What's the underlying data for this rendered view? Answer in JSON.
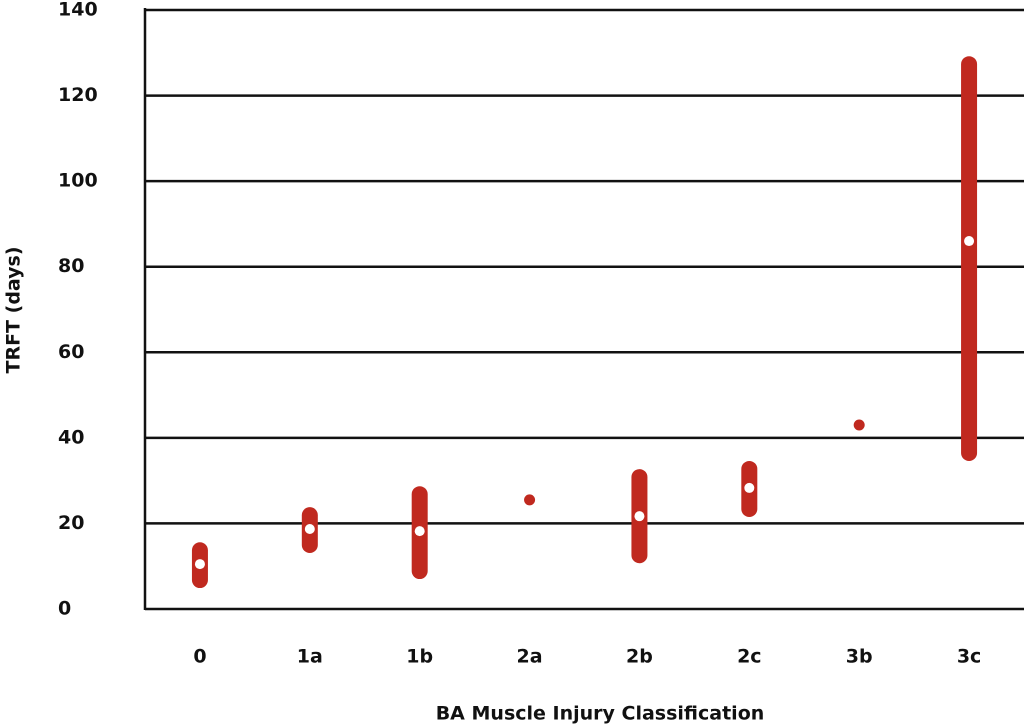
{
  "chart_data": {
    "type": "range",
    "x_label": "BA Muscle Injury Classification",
    "y_label": "TRFT (days)",
    "categories": [
      "0",
      "1a",
      "1b",
      "2a",
      "2b",
      "2c",
      "3b",
      "3c"
    ],
    "low": [
      4.9,
      13.1,
      7.0,
      null,
      10.7,
      21.5,
      null,
      34.6
    ],
    "high": [
      15.6,
      23.8,
      28.7,
      null,
      32.7,
      34.6,
      null,
      129.2
    ],
    "median": [
      10.5,
      18.7,
      18.2,
      25.5,
      21.7,
      28.3,
      43,
      86
    ],
    "color": "#c0291f",
    "ylim": [
      0,
      140
    ],
    "yticks": [
      0,
      20,
      40,
      60,
      80,
      100,
      120,
      140
    ],
    "grid": true
  }
}
